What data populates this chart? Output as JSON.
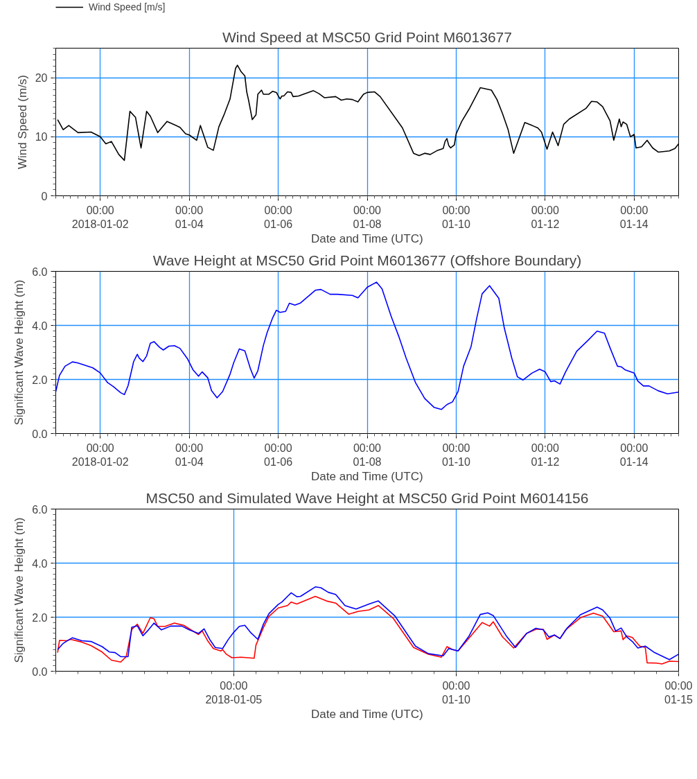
{
  "chart_data": [
    {
      "type": "line",
      "title": "Wind Speed at MSC50 Grid Point M6013677",
      "xlabel": "Date and Time (UTC)",
      "ylabel": "Wind Speed (m/s)",
      "xlim": [
        "2018-01-01T00:00",
        "2018-01-15T00:00"
      ],
      "xticks": [
        {
          "value": "2018-01-02T00:00",
          "label": "00:00\n2018-01-02"
        },
        {
          "value": "2018-01-04T00:00",
          "label": "00:00\n01-04"
        },
        {
          "value": "2018-01-06T00:00",
          "label": "00:00\n01-06"
        },
        {
          "value": "2018-01-08T00:00",
          "label": "00:00\n01-08"
        },
        {
          "value": "2018-01-10T00:00",
          "label": "00:00\n01-10"
        },
        {
          "value": "2018-01-12T00:00",
          "label": "00:00\n01-12"
        },
        {
          "value": "2018-01-14T00:00",
          "label": "00:00\n01-14"
        }
      ],
      "ylim": [
        0,
        25
      ],
      "yticks": [
        0,
        10,
        20
      ],
      "grid": true,
      "legend": "top left",
      "series": [
        {
          "name": "Wind Speed [m/s]",
          "color": "#000000",
          "x": [
            "2018-01-01T01:00",
            "2018-01-01T04:00",
            "2018-01-01T07:00",
            "2018-01-01T12:00",
            "2018-01-01T19:00",
            "2018-01-02T00:00",
            "2018-01-02T03:00",
            "2018-01-02T06:00",
            "2018-01-02T10:00",
            "2018-01-02T13:00",
            "2018-01-02T16:00",
            "2018-01-02T19:00",
            "2018-01-02T22:00",
            "2018-01-03T01:00",
            "2018-01-03T03:00",
            "2018-01-03T07:00",
            "2018-01-03T12:00",
            "2018-01-03T19:00",
            "2018-01-03T22:00",
            "2018-01-04T00:00",
            "2018-01-04T04:00",
            "2018-01-04T06:00",
            "2018-01-04T10:00",
            "2018-01-04T13:00",
            "2018-01-04T16:00",
            "2018-01-04T19:00",
            "2018-01-04T22:00",
            "2018-01-05T01:00",
            "2018-01-05T02:00",
            "2018-01-05T04:00",
            "2018-01-05T06:00",
            "2018-01-05T07:00",
            "2018-01-05T08:00",
            "2018-01-05T10:00",
            "2018-01-05T12:00",
            "2018-01-05T13:00",
            "2018-01-05T15:00",
            "2018-01-05T16:00",
            "2018-01-05T19:00",
            "2018-01-05T21:00",
            "2018-01-05T23:00",
            "2018-01-06T01:00",
            "2018-01-06T02:00",
            "2018-01-06T03:00",
            "2018-01-06T05:00",
            "2018-01-06T07:00",
            "2018-01-06T08:00",
            "2018-01-06T11:00",
            "2018-01-06T19:00",
            "2018-01-06T22:00",
            "2018-01-07T01:00",
            "2018-01-07T07:00",
            "2018-01-07T10:00",
            "2018-01-07T13:00",
            "2018-01-07T16:00",
            "2018-01-07T19:00",
            "2018-01-07T22:00",
            "2018-01-08T00:00",
            "2018-01-08T04:00",
            "2018-01-08T07:00",
            "2018-01-08T19:00",
            "2018-01-09T01:00",
            "2018-01-09T04:00",
            "2018-01-09T07:00",
            "2018-01-09T10:00",
            "2018-01-09T14:00",
            "2018-01-09T17:00",
            "2018-01-09T18:00",
            "2018-01-09T19:00",
            "2018-01-09T20:00",
            "2018-01-09T21:00",
            "2018-01-09T23:00",
            "2018-01-10T00:00",
            "2018-01-10T03:00",
            "2018-01-10T07:00",
            "2018-01-10T13:00",
            "2018-01-10T19:00",
            "2018-01-10T22:00",
            "2018-01-11T01:00",
            "2018-01-11T04:00",
            "2018-01-11T07:00",
            "2018-01-11T13:00",
            "2018-01-11T17:00",
            "2018-01-11T20:00",
            "2018-01-11T22:00",
            "2018-01-12T01:00",
            "2018-01-12T04:00",
            "2018-01-12T07:00",
            "2018-01-12T10:00",
            "2018-01-12T13:00",
            "2018-01-12T22:00",
            "2018-01-13T01:00",
            "2018-01-13T04:00",
            "2018-01-13T07:00",
            "2018-01-13T11:00",
            "2018-01-13T13:00",
            "2018-01-13T16:00",
            "2018-01-13T17:00",
            "2018-01-13T18:00",
            "2018-01-13T20:00",
            "2018-01-13T22:00",
            "2018-01-14T00:00",
            "2018-01-14T01:00",
            "2018-01-14T04:00",
            "2018-01-14T07:00",
            "2018-01-14T10:00",
            "2018-01-14T13:00",
            "2018-01-14T19:00",
            "2018-01-14T22:00",
            "2018-01-15T00:00"
          ],
          "values": [
            12.9,
            11.2,
            11.9,
            10.7,
            10.8,
            10.0,
            8.8,
            9.2,
            7.0,
            6.0,
            14.3,
            13.3,
            8.1,
            14.3,
            13.5,
            10.7,
            12.6,
            11.6,
            10.5,
            10.3,
            9.4,
            11.9,
            8.2,
            7.7,
            11.7,
            13.9,
            16.4,
            21.6,
            22.1,
            21.0,
            20.3,
            17.6,
            16.2,
            12.9,
            13.7,
            17.2,
            17.9,
            17.2,
            17.2,
            17.7,
            17.5,
            16.4,
            16.9,
            16.9,
            17.6,
            17.5,
            16.8,
            16.9,
            17.8,
            17.3,
            16.6,
            16.8,
            16.2,
            16.4,
            16.3,
            15.9,
            17.2,
            17.5,
            17.6,
            16.8,
            11.5,
            7.2,
            6.8,
            7.2,
            7.0,
            7.7,
            8.0,
            9.2,
            9.7,
            8.5,
            8.1,
            8.6,
            10.5,
            12.6,
            14.7,
            18.3,
            17.9,
            16.3,
            13.9,
            11.2,
            7.2,
            12.4,
            11.9,
            11.5,
            10.8,
            7.9,
            10.8,
            8.5,
            12.1,
            13.0,
            14.8,
            16.0,
            15.9,
            15.1,
            12.7,
            9.4,
            13.0,
            11.7,
            12.5,
            12.1,
            10.0,
            10.4,
            8.1,
            8.3,
            9.4,
            8.1,
            7.4,
            7.6,
            8.0,
            8.8
          ]
        }
      ]
    },
    {
      "type": "line",
      "title": "Wave Height at MSC50 Grid Point M6013677 (Offshore Boundary)",
      "xlabel": "Date and Time (UTC)",
      "ylabel": "Significant Wave Height (m)",
      "xlim": [
        "2018-01-01T00:00",
        "2018-01-15T00:00"
      ],
      "xticks": [
        {
          "value": "2018-01-02T00:00",
          "label": "00:00\n2018-01-02"
        },
        {
          "value": "2018-01-04T00:00",
          "label": "00:00\n01-04"
        },
        {
          "value": "2018-01-06T00:00",
          "label": "00:00\n01-06"
        },
        {
          "value": "2018-01-08T00:00",
          "label": "00:00\n01-08"
        },
        {
          "value": "2018-01-10T00:00",
          "label": "00:00\n01-10"
        },
        {
          "value": "2018-01-12T00:00",
          "label": "00:00\n01-12"
        },
        {
          "value": "2018-01-14T00:00",
          "label": "00:00\n01-14"
        }
      ],
      "ylim": [
        0,
        6
      ],
      "yticks": [
        {
          "value": 0,
          "label": "0.0"
        },
        {
          "value": 2,
          "label": "2.0"
        },
        {
          "value": 4,
          "label": "4.0"
        },
        {
          "value": 6,
          "label": "6.0"
        }
      ],
      "grid": true,
      "series": [
        {
          "color": "#0000ff",
          "x": [
            "2018-01-01T00:00",
            "2018-01-01T02:00",
            "2018-01-01T05:00",
            "2018-01-01T09:00",
            "2018-01-01T12:00",
            "2018-01-01T20:00",
            "2018-01-02T00:00",
            "2018-01-02T04:00",
            "2018-01-02T07:00",
            "2018-01-02T11:00",
            "2018-01-02T13:00",
            "2018-01-02T15:00",
            "2018-01-02T18:00",
            "2018-01-02T20:00",
            "2018-01-02T21:00",
            "2018-01-02T23:00",
            "2018-01-03T01:00",
            "2018-01-03T03:00",
            "2018-01-03T05:00",
            "2018-01-03T08:00",
            "2018-01-03T10:00",
            "2018-01-03T13:00",
            "2018-01-03T16:00",
            "2018-01-03T19:00",
            "2018-01-03T23:00",
            "2018-01-04T02:00",
            "2018-01-04T05:00",
            "2018-01-04T07:00",
            "2018-01-04T10:00",
            "2018-01-04T12:00",
            "2018-01-04T15:00",
            "2018-01-04T18:00",
            "2018-01-04T22:00",
            "2018-01-05T00:00",
            "2018-01-05T03:00",
            "2018-01-05T06:00",
            "2018-01-05T09:00",
            "2018-01-05T11:00",
            "2018-01-05T13:00",
            "2018-01-05T16:00",
            "2018-01-05T18:00",
            "2018-01-05T21:00",
            "2018-01-05T23:00",
            "2018-01-06T01:00",
            "2018-01-06T04:00",
            "2018-01-06T06:00",
            "2018-01-06T09:00",
            "2018-01-06T12:00",
            "2018-01-06T20:00",
            "2018-01-06T23:00",
            "2018-01-07T04:00",
            "2018-01-07T08:00",
            "2018-01-07T16:00",
            "2018-01-07T19:00",
            "2018-01-08T00:00",
            "2018-01-08T05:00",
            "2018-01-08T08:00",
            "2018-01-08T13:00",
            "2018-01-08T17:00",
            "2018-01-08T21:00",
            "2018-01-09T02:00",
            "2018-01-09T07:00",
            "2018-01-09T12:00",
            "2018-01-09T16:00",
            "2018-01-09T19:00",
            "2018-01-09T22:00",
            "2018-01-10T01:00",
            "2018-01-10T04:00",
            "2018-01-10T08:00",
            "2018-01-10T11:00",
            "2018-01-10T14:00",
            "2018-01-10T18:00",
            "2018-01-10T23:00",
            "2018-01-11T02:00",
            "2018-01-11T06:00",
            "2018-01-11T09:00",
            "2018-01-11T12:00",
            "2018-01-11T17:00",
            "2018-01-11T21:00",
            "2018-01-12T00:00",
            "2018-01-12T03:00",
            "2018-01-12T05:00",
            "2018-01-12T08:00",
            "2018-01-12T11:00",
            "2018-01-12T17:00",
            "2018-01-12T23:00",
            "2018-01-13T04:00",
            "2018-01-13T08:00",
            "2018-01-13T11:00",
            "2018-01-13T15:00",
            "2018-01-13T17:00",
            "2018-01-13T19:00",
            "2018-01-14T00:00",
            "2018-01-14T02:00",
            "2018-01-14T05:00",
            "2018-01-14T08:00",
            "2018-01-14T13:00",
            "2018-01-14T18:00",
            "2018-01-15T00:00"
          ],
          "values": [
            1.55,
            2.15,
            2.49,
            2.65,
            2.61,
            2.43,
            2.24,
            1.88,
            1.74,
            1.51,
            1.44,
            1.77,
            2.66,
            2.93,
            2.79,
            2.66,
            2.87,
            3.34,
            3.4,
            3.19,
            3.09,
            3.23,
            3.25,
            3.15,
            2.77,
            2.36,
            2.12,
            2.28,
            2.06,
            1.59,
            1.32,
            1.55,
            2.19,
            2.62,
            3.13,
            3.06,
            2.4,
            2.05,
            2.32,
            3.26,
            3.73,
            4.28,
            4.56,
            4.48,
            4.52,
            4.82,
            4.75,
            4.83,
            5.3,
            5.33,
            5.15,
            5.15,
            5.11,
            5.02,
            5.41,
            5.6,
            5.35,
            4.32,
            3.6,
            2.79,
            1.89,
            1.3,
            0.97,
            0.89,
            1.07,
            1.17,
            1.55,
            2.49,
            3.21,
            4.24,
            5.17,
            5.47,
            5.0,
            3.89,
            2.79,
            2.1,
            1.98,
            2.24,
            2.38,
            2.28,
            1.92,
            1.95,
            1.83,
            2.28,
            3.04,
            3.44,
            3.79,
            3.71,
            3.17,
            2.49,
            2.47,
            2.36,
            2.24,
            1.94,
            1.76,
            1.76,
            1.58,
            1.47,
            1.53
          ]
        }
      ]
    },
    {
      "type": "line",
      "title": "MSC50 and Simulated Wave Height at MSC50 Grid Point M6014156",
      "xlabel": "Date and Time (UTC)",
      "ylabel": "Significant Wave Height (m)",
      "xlim": [
        "2018-01-01T00:00",
        "2018-01-15T00:00"
      ],
      "xticks": [
        {
          "value": "2018-01-05T00:00",
          "label": "00:00\n2018-01-05"
        },
        {
          "value": "2018-01-10T00:00",
          "label": "00:00\n01-10"
        },
        {
          "value": "2018-01-15T00:00",
          "label": "00:00\n01-15"
        }
      ],
      "ylim": [
        0,
        6
      ],
      "yticks": [
        {
          "value": 0,
          "label": "0.0"
        },
        {
          "value": 2,
          "label": "2.0"
        },
        {
          "value": 4,
          "label": "4.0"
        },
        {
          "value": 6,
          "label": "6.0"
        }
      ],
      "grid": true,
      "series": [
        {
          "color": "#ff0000",
          "x": [
            "2018-01-01T01:00",
            "2018-01-01T02:00",
            "2018-01-01T06:00",
            "2018-01-01T08:00",
            "2018-01-01T14:00",
            "2018-01-01T19:00",
            "2018-01-02T01:00",
            "2018-01-02T06:00",
            "2018-01-02T11:00",
            "2018-01-02T14:00",
            "2018-01-02T17:00",
            "2018-01-02T20:00",
            "2018-01-02T23:00",
            "2018-01-03T03:00",
            "2018-01-03T05:00",
            "2018-01-03T07:00",
            "2018-01-03T11:00",
            "2018-01-03T16:00",
            "2018-01-03T21:00",
            "2018-01-04T05:00",
            "2018-01-04T07:00",
            "2018-01-04T10:00",
            "2018-01-04T13:00",
            "2018-01-04T17:00",
            "2018-01-04T18:00",
            "2018-01-04T20:00",
            "2018-01-04T23:00",
            "2018-01-05T04:00",
            "2018-01-05T11:00",
            "2018-01-05T12:00",
            "2018-01-05T16:00",
            "2018-01-05T19:00",
            "2018-01-06T00:00",
            "2018-01-06T05:00",
            "2018-01-06T07:00",
            "2018-01-06T10:00",
            "2018-01-06T20:00",
            "2018-01-07T02:00",
            "2018-01-07T07:00",
            "2018-01-07T14:00",
            "2018-01-07T19:00",
            "2018-01-08T01:00",
            "2018-01-08T06:00",
            "2018-01-08T14:00",
            "2018-01-09T01:00",
            "2018-01-09T09:00",
            "2018-01-09T16:00",
            "2018-01-09T19:00",
            "2018-01-09T22:00",
            "2018-01-10T01:00",
            "2018-01-10T07:00",
            "2018-01-10T14:00",
            "2018-01-10T18:00",
            "2018-01-10T20:00",
            "2018-01-11T01:00",
            "2018-01-11T07:00",
            "2018-01-11T14:00",
            "2018-01-11T19:00",
            "2018-01-11T23:00",
            "2018-01-12T01:00",
            "2018-01-12T05:00",
            "2018-01-12T08:00",
            "2018-01-12T11:00",
            "2018-01-12T19:00",
            "2018-01-13T02:00",
            "2018-01-13T07:00",
            "2018-01-13T13:00",
            "2018-01-13T17:00",
            "2018-01-13T18:00",
            "2018-01-13T20:00",
            "2018-01-13T23:00",
            "2018-01-14T03:00",
            "2018-01-14T06:00",
            "2018-01-14T07:00",
            "2018-01-14T12:00",
            "2018-01-14T15:00",
            "2018-01-14T19:00",
            "2018-01-15T00:00"
          ],
          "values": [
            0.69,
            1.14,
            1.13,
            1.18,
            1.08,
            0.95,
            0.71,
            0.41,
            0.34,
            0.54,
            1.55,
            1.74,
            1.4,
            1.98,
            1.94,
            1.66,
            1.66,
            1.78,
            1.7,
            1.36,
            1.49,
            1.12,
            0.84,
            0.75,
            0.8,
            0.63,
            0.5,
            0.52,
            0.48,
            0.97,
            1.61,
            2.03,
            2.34,
            2.43,
            2.56,
            2.49,
            2.77,
            2.6,
            2.52,
            2.11,
            2.21,
            2.27,
            2.43,
            1.96,
            0.88,
            0.63,
            0.52,
            0.91,
            0.8,
            0.75,
            1.23,
            1.8,
            1.67,
            1.83,
            1.27,
            0.86,
            1.4,
            1.55,
            1.55,
            1.18,
            1.34,
            1.21,
            1.53,
            1.98,
            2.15,
            2.04,
            1.46,
            1.49,
            1.17,
            1.31,
            1.25,
            0.93,
            0.88,
            0.31,
            0.3,
            0.27,
            0.37,
            0.36
          ]
        },
        {
          "color": "#0000ff",
          "x": [
            "2018-01-01T01:00",
            "2018-01-01T04:00",
            "2018-01-01T06:00",
            "2018-01-01T09:00",
            "2018-01-01T14:00",
            "2018-01-01T19:00",
            "2018-01-02T01:00",
            "2018-01-02T05:00",
            "2018-01-02T08:00",
            "2018-01-02T11:00",
            "2018-01-02T15:00",
            "2018-01-02T17:00",
            "2018-01-02T20:00",
            "2018-01-02T23:00",
            "2018-01-03T02:00",
            "2018-01-03T05:00",
            "2018-01-03T09:00",
            "2018-01-03T14:00",
            "2018-01-03T20:00",
            "2018-01-04T00:00",
            "2018-01-04T05:00",
            "2018-01-04T08:00",
            "2018-01-04T11:00",
            "2018-01-04T14:00",
            "2018-01-04T18:00",
            "2018-01-04T21:00",
            "2018-01-05T00:00",
            "2018-01-05T03:00",
            "2018-01-05T06:00",
            "2018-01-05T09:00",
            "2018-01-05T13:00",
            "2018-01-05T16:00",
            "2018-01-05T19:00",
            "2018-01-06T00:00",
            "2018-01-06T02:00",
            "2018-01-06T05:00",
            "2018-01-06T07:00",
            "2018-01-06T10:00",
            "2018-01-06T12:00",
            "2018-01-06T20:00",
            "2018-01-06T23:00",
            "2018-01-07T03:00",
            "2018-01-07T07:00",
            "2018-01-07T12:00",
            "2018-01-07T18:00",
            "2018-01-08T01:00",
            "2018-01-08T06:00",
            "2018-01-08T15:00",
            "2018-01-09T02:00",
            "2018-01-09T09:00",
            "2018-01-09T17:00",
            "2018-01-09T20:00",
            "2018-01-10T01:00",
            "2018-01-10T07:00",
            "2018-01-10T13:00",
            "2018-01-10T17:00",
            "2018-01-10T20:00",
            "2018-01-11T03:00",
            "2018-01-11T08:00",
            "2018-01-11T14:00",
            "2018-01-11T19:00",
            "2018-01-11T23:00",
            "2018-01-12T02:00",
            "2018-01-12T05:00",
            "2018-01-12T08:00",
            "2018-01-12T12:00",
            "2018-01-12T19:00",
            "2018-01-13T04:00",
            "2018-01-13T07:00",
            "2018-01-13T11:00",
            "2018-01-13T14:00",
            "2018-01-13T17:00",
            "2018-01-13T20:00",
            "2018-01-13T23:00",
            "2018-01-14T02:00",
            "2018-01-14T06:00",
            "2018-01-14T11:00",
            "2018-01-14T19:00",
            "2018-01-15T00:00"
          ],
          "values": [
            0.8,
            1.03,
            1.12,
            1.24,
            1.13,
            1.1,
            0.91,
            0.71,
            0.69,
            0.54,
            0.54,
            1.63,
            1.68,
            1.31,
            1.53,
            1.78,
            1.53,
            1.67,
            1.67,
            1.53,
            1.4,
            1.57,
            1.18,
            0.88,
            0.84,
            1.17,
            1.44,
            1.66,
            1.7,
            1.44,
            1.18,
            1.74,
            2.13,
            2.47,
            2.56,
            2.77,
            2.9,
            2.76,
            2.77,
            3.12,
            3.09,
            2.92,
            2.84,
            2.43,
            2.3,
            2.49,
            2.6,
            2.04,
            0.93,
            0.65,
            0.57,
            0.84,
            0.75,
            1.31,
            2.1,
            2.16,
            2.06,
            1.31,
            0.88,
            1.4,
            1.59,
            1.53,
            1.27,
            1.34,
            1.21,
            1.61,
            2.09,
            2.37,
            2.27,
            1.96,
            1.49,
            1.6,
            1.27,
            1.1,
            0.86,
            0.93,
            0.69,
            0.43,
            0.63
          ]
        }
      ]
    }
  ]
}
